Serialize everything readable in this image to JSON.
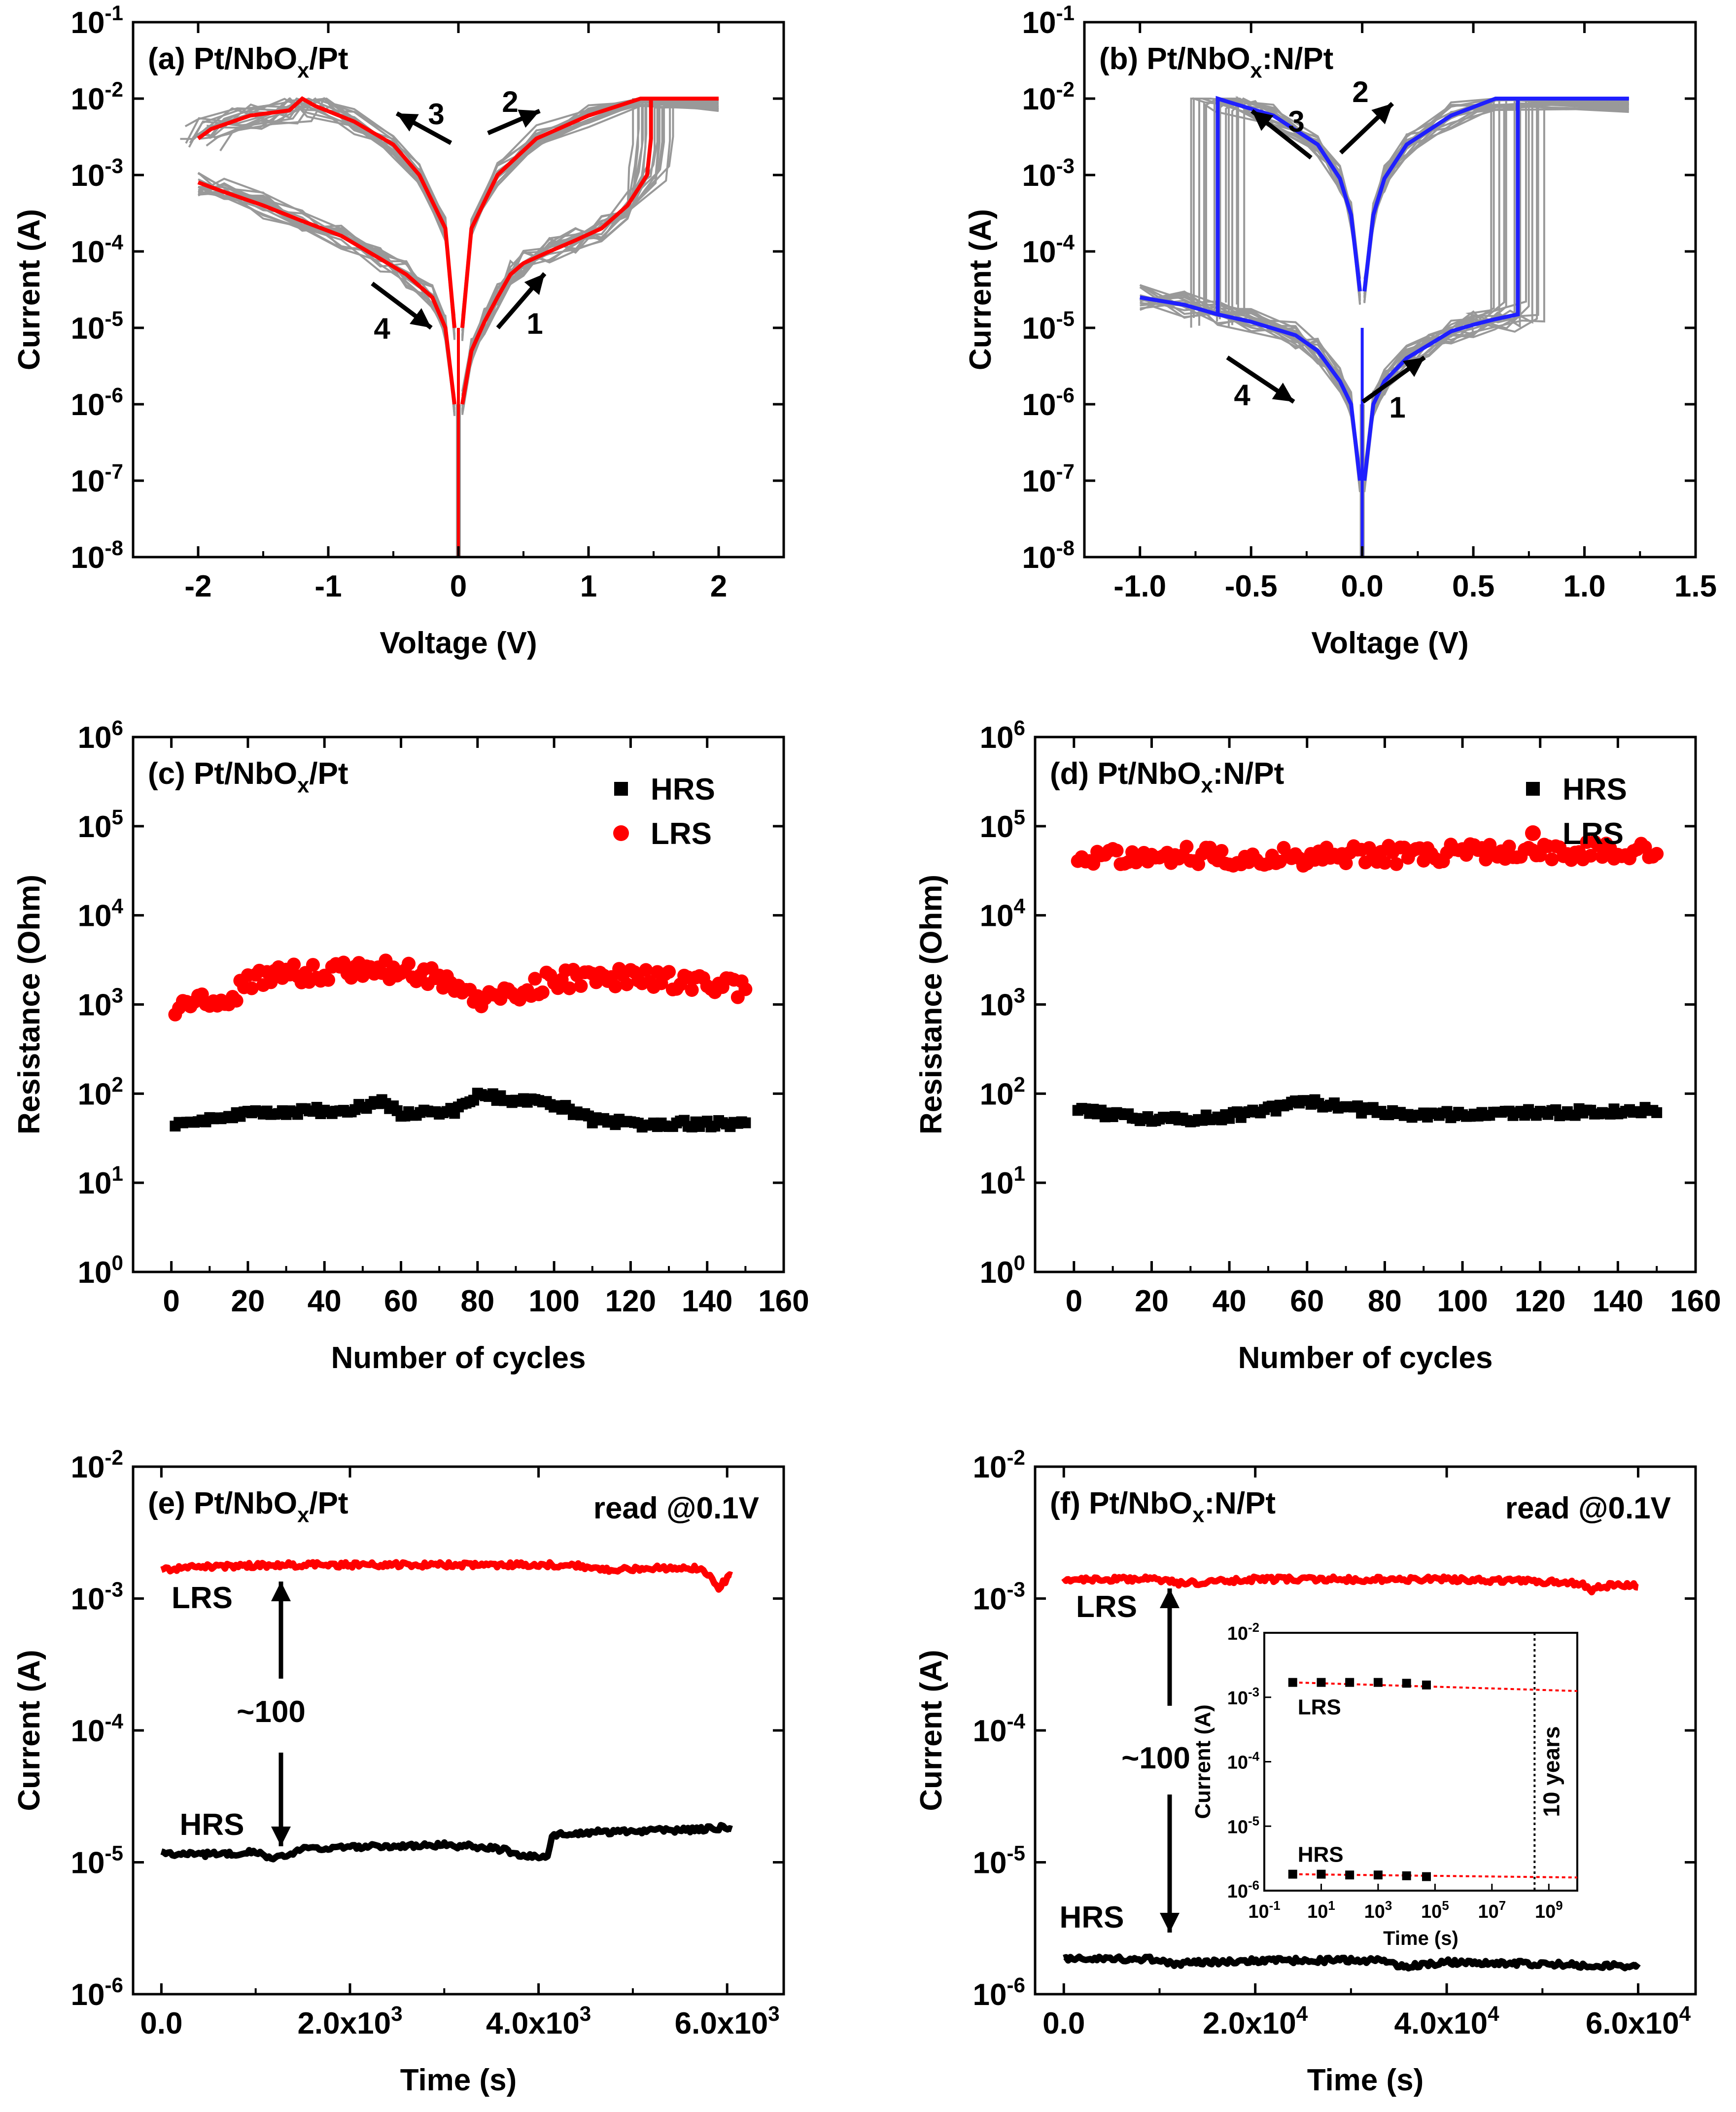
{
  "chart_data": [
    {
      "panel": "a",
      "type": "line",
      "title": "(a) Pt/NbO",
      "title_sub": "x",
      "title_tail": "/Pt",
      "xlabel": "Voltage (V)",
      "ylabel": "Current (A)",
      "xlim": [
        -2.5,
        2.5
      ],
      "xticks": [
        "-2",
        "-1",
        "0",
        "1",
        "2"
      ],
      "ylog": true,
      "ylim_exp": [
        -8,
        -1
      ],
      "yticks": [
        "10^-8",
        "10^-7",
        "10^-6",
        "10^-5",
        "10^-4",
        "10^-3",
        "10^-2",
        "10^-1"
      ],
      "highlight_color": "#ff0000",
      "cycle_color": "#999999",
      "compliance": 0.01,
      "arrows": [
        "1",
        "2",
        "3",
        "4"
      ],
      "highlight_cycle": {
        "set_branch": {
          "v": [
            0.03,
            0.1,
            0.2,
            0.3,
            0.4,
            0.5,
            0.7,
            0.9,
            1.1,
            1.3,
            1.45,
            1.48,
            1.48,
            2.0
          ],
          "i": [
            1e-06,
            5e-06,
            1.2e-05,
            2.5e-05,
            5e-05,
            7e-05,
            0.0001,
            0.00014,
            0.0002,
            0.0004,
            0.001,
            0.003,
            0.01,
            0.01
          ]
        },
        "lrs_return": {
          "v": [
            2.0,
            1.4,
            1.0,
            0.6,
            0.3,
            0.1,
            0.03
          ],
          "i": [
            0.01,
            0.01,
            0.006,
            0.003,
            0.001,
            0.0002,
            1e-05
          ]
        },
        "reset_branch": {
          "v": [
            -0.03,
            -0.1,
            -0.3,
            -0.5,
            -0.8,
            -1.1,
            -1.2,
            -1.3,
            -1.6,
            -1.9,
            -2.0
          ],
          "i": [
            1e-05,
            0.0002,
            0.001,
            0.0025,
            0.005,
            0.008,
            0.01,
            0.007,
            0.006,
            0.004,
            0.003
          ]
        },
        "hrs_return": {
          "v": [
            -2.0,
            -1.8,
            -1.5,
            -1.2,
            -0.9,
            -0.6,
            -0.4,
            -0.2,
            -0.1,
            -0.03
          ],
          "i": [
            0.0008,
            0.0006,
            0.0004,
            0.00025,
            0.00016,
            8e-05,
            5e-05,
            2.5e-05,
            1e-05,
            1e-06
          ]
        }
      }
    },
    {
      "panel": "b",
      "type": "line",
      "title": "(b) Pt/NbO",
      "title_sub": "x",
      "title_tail": ":N/Pt",
      "xlabel": "Voltage (V)",
      "ylabel": "Current (A)",
      "xlim": [
        -1.25,
        1.5
      ],
      "xticks": [
        "-1.0",
        "-0.5",
        "0.0",
        "0.5",
        "1.0",
        "1.5"
      ],
      "ylog": true,
      "ylim_exp": [
        -8,
        -1
      ],
      "yticks": [
        "10^-8",
        "10^-7",
        "10^-6",
        "10^-5",
        "10^-4",
        "10^-3",
        "10^-2",
        "10^-1"
      ],
      "highlight_color": "#1f1fff",
      "cycle_color": "#999999",
      "compliance": 0.01,
      "arrows": [
        "1",
        "2",
        "3",
        "4"
      ],
      "highlight_cycle": {
        "set_branch": {
          "v": [
            0.01,
            0.05,
            0.1,
            0.2,
            0.3,
            0.4,
            0.5,
            0.6,
            0.7,
            0.7,
            1.2
          ],
          "i": [
            1e-07,
            1e-06,
            2e-06,
            4e-06,
            6e-06,
            9e-06,
            1.1e-05,
            1.3e-05,
            1.5e-05,
            0.01,
            0.01
          ]
        },
        "lrs_return": {
          "v": [
            1.2,
            0.6,
            0.4,
            0.2,
            0.1,
            0.05,
            0.01
          ],
          "i": [
            0.01,
            0.01,
            0.006,
            0.0025,
            0.0009,
            0.0003,
            3e-05
          ]
        },
        "reset_branch": {
          "v": [
            -0.01,
            -0.05,
            -0.1,
            -0.2,
            -0.4,
            -0.6,
            -0.65,
            -0.65
          ],
          "i": [
            3e-05,
            0.0003,
            0.0009,
            0.0025,
            0.006,
            0.009,
            0.01,
            1.5e-05
          ]
        },
        "hrs_return": {
          "v": [
            -1.0,
            -0.8,
            -0.65,
            -0.5,
            -0.3,
            -0.2,
            -0.1,
            -0.05,
            -0.01
          ],
          "i": [
            2.5e-05,
            2e-05,
            1.5e-05,
            1.2e-05,
            8e-06,
            5e-06,
            2e-06,
            1e-06,
            1e-07
          ]
        }
      }
    },
    {
      "panel": "c",
      "type": "scatter",
      "title": "(c) Pt/NbO",
      "title_sub": "x",
      "title_tail": "/Pt",
      "xlabel": "Number of cycles",
      "ylabel": "Resistance (Ohm)",
      "xlim": [
        -10,
        160
      ],
      "xticks": [
        "0",
        "20",
        "40",
        "60",
        "80",
        "100",
        "120",
        "140",
        "160"
      ],
      "ylog": true,
      "ylim_exp": [
        0,
        6
      ],
      "yticks": [
        "10^0",
        "10^1",
        "10^2",
        "10^3",
        "10^4",
        "10^5",
        "10^6"
      ],
      "legend": [
        "HRS",
        "LRS"
      ],
      "legend_position": "top-right",
      "cycles": [
        1,
        150
      ],
      "series": [
        {
          "name": "HRS",
          "color": "#000000",
          "marker": "square",
          "segments": [
            [
              0,
              45
            ],
            [
              15,
              52
            ],
            [
              20,
              62
            ],
            [
              45,
              65
            ],
            [
              55,
              80
            ],
            [
              60,
              60
            ],
            [
              75,
              65
            ],
            [
              80,
              95
            ],
            [
              90,
              85
            ],
            [
              100,
              75
            ],
            [
              110,
              50
            ],
            [
              120,
              46
            ],
            [
              150,
              46
            ]
          ]
        },
        {
          "name": "LRS",
          "color": "#ff0000",
          "marker": "circle",
          "segments": [
            [
              0,
              900
            ],
            [
              10,
              1100
            ],
            [
              15,
              900
            ],
            [
              20,
              1900
            ],
            [
              40,
              2400
            ],
            [
              55,
              2500
            ],
            [
              70,
              2000
            ],
            [
              80,
              1100
            ],
            [
              90,
              1300
            ],
            [
              100,
              1900
            ],
            [
              120,
              2000
            ],
            [
              140,
              1700
            ],
            [
              150,
              1400
            ]
          ]
        }
      ]
    },
    {
      "panel": "d",
      "type": "scatter",
      "title": "(d) Pt/NbO",
      "title_sub": "x",
      "title_tail": ":N/Pt",
      "xlabel": "Number of cycles",
      "ylabel": "Resistance (Ohm)",
      "xlim": [
        -10,
        160
      ],
      "xticks": [
        "0",
        "20",
        "40",
        "60",
        "80",
        "100",
        "120",
        "140",
        "160"
      ],
      "ylog": true,
      "ylim_exp": [
        0,
        6
      ],
      "yticks": [
        "10^0",
        "10^1",
        "10^2",
        "10^3",
        "10^4",
        "10^5",
        "10^6"
      ],
      "legend": [
        "HRS",
        "LRS"
      ],
      "legend_position": "top-right",
      "cycles": [
        1,
        150
      ],
      "series": [
        {
          "name": "HRS",
          "color": "#000000",
          "marker": "square",
          "segments": [
            [
              0,
              65
            ],
            [
              15,
              55
            ],
            [
              30,
              50
            ],
            [
              45,
              60
            ],
            [
              60,
              80
            ],
            [
              75,
              65
            ],
            [
              90,
              58
            ],
            [
              110,
              60
            ],
            [
              130,
              62
            ],
            [
              150,
              65
            ]
          ]
        },
        {
          "name": "LRS",
          "color": "#ff0000",
          "marker": "circle",
          "segments": [
            [
              0,
              45000
            ],
            [
              20,
              50000
            ],
            [
              40,
              45000
            ],
            [
              60,
              46000
            ],
            [
              80,
              48000
            ],
            [
              100,
              50000
            ],
            [
              120,
              52000
            ],
            [
              150,
              52000
            ]
          ]
        }
      ]
    },
    {
      "panel": "e",
      "type": "line",
      "title": "(e) Pt/NbO",
      "title_sub": "x",
      "title_tail": "/Pt",
      "annotation": "read @0.1V",
      "ratio_label": "~100",
      "xlabel": "Time (s)",
      "ylabel": "Current (A)",
      "xlim": [
        -300,
        6600
      ],
      "xticks": [
        "0.0",
        "2.0x10^3",
        "4.0x10^3",
        "6.0x10^3"
      ],
      "ylog": true,
      "ylim_exp": [
        -6,
        -2
      ],
      "yticks": [
        "10^-6",
        "10^-5",
        "10^-4",
        "10^-3",
        "10^-2"
      ],
      "series": [
        {
          "name": "LRS",
          "color": "#ff0000",
          "t": [
            0,
            500,
            1200,
            2500,
            3500,
            4400,
            4600,
            5200,
            5700,
            5850,
            5900,
            6000,
            6050
          ],
          "i": [
            0.00165,
            0.00175,
            0.0018,
            0.0018,
            0.0018,
            0.0018,
            0.00165,
            0.0017,
            0.0017,
            0.0014,
            0.0012,
            0.0014,
            0.0015
          ]
        },
        {
          "name": "HRS",
          "color": "#000000",
          "t": [
            0,
            100,
            500,
            1000,
            1200,
            1500,
            2000,
            3000,
            3500,
            3800,
            4100,
            4150,
            4600,
            5500,
            6050
          ],
          "i": [
            1.25e-05,
            1.15e-05,
            1.15e-05,
            1.2e-05,
            1.05e-05,
            1.25e-05,
            1.3e-05,
            1.35e-05,
            1.3e-05,
            1.15e-05,
            1.1e-05,
            1.6e-05,
            1.7e-05,
            1.75e-05,
            1.85e-05
          ]
        }
      ]
    },
    {
      "panel": "f",
      "type": "line",
      "title": "(f) Pt/NbO",
      "title_sub": "x",
      "title_tail": ":N/Pt",
      "annotation": "read @0.1V",
      "ratio_label": "~100",
      "xlabel": "Time (s)",
      "ylabel": "Current (A)",
      "xlim": [
        -3000,
        66000
      ],
      "xticks": [
        "0.0",
        "2.0x10^4",
        "4.0x10^4",
        "6.0x10^4"
      ],
      "ylog": true,
      "ylim_exp": [
        -6,
        -2
      ],
      "yticks": [
        "10^-6",
        "10^-5",
        "10^-4",
        "10^-3",
        "10^-2"
      ],
      "series": [
        {
          "name": "LRS",
          "color": "#ff0000",
          "t": [
            0,
            10000,
            12000,
            20000,
            30000,
            40000,
            50000,
            54000,
            55000,
            56000,
            60000
          ],
          "i": [
            0.0014,
            0.0014,
            0.0013,
            0.0014,
            0.0014,
            0.0014,
            0.00135,
            0.0013,
            0.00115,
            0.00125,
            0.00125
          ]
        },
        {
          "name": "HRS",
          "color": "#000000",
          "t": [
            0,
            10000,
            11000,
            20000,
            34000,
            35000,
            40000,
            50000,
            55000,
            60000
          ],
          "i": [
            1.85e-06,
            1.85e-06,
            1.7e-06,
            1.8e-06,
            1.8e-06,
            1.6e-06,
            1.75e-06,
            1.7e-06,
            1.65e-06,
            1.65e-06
          ]
        }
      ],
      "inset": {
        "type": "scatter",
        "xlabel": "Time (s)",
        "ylabel": "Current (A)",
        "xlim_exp": [
          -1,
          10
        ],
        "xticks": [
          "10^-1",
          "10^1",
          "10^3",
          "10^5",
          "10^7",
          "10^9"
        ],
        "ylim_exp": [
          -6,
          -2
        ],
        "yticks": [
          "10^-6",
          "10^-5",
          "10^-4",
          "10^-3",
          "10^-2"
        ],
        "vline_label": "10 years",
        "vline_t": 315000000,
        "series": [
          {
            "name": "LRS",
            "t": [
              1,
              10,
              100,
              1000,
              10000,
              50000
            ],
            "i": [
              0.0017,
              0.0017,
              0.0017,
              0.0017,
              0.00165,
              0.00155
            ]
          },
          {
            "name": "HRS",
            "t": [
              1,
              10,
              100,
              1000,
              10000,
              50000
            ],
            "i": [
              1.8e-06,
              1.8e-06,
              1.75e-06,
              1.75e-06,
              1.7e-06,
              1.65e-06
            ]
          }
        ],
        "extrapolation": [
          {
            "name": "LRS",
            "t": [
              1,
              10000000000
            ],
            "i": [
              0.0017,
              0.00125
            ]
          },
          {
            "name": "HRS",
            "t": [
              1,
              10000000000
            ],
            "i": [
              1.8e-06,
              1.6e-06
            ]
          }
        ]
      }
    }
  ]
}
